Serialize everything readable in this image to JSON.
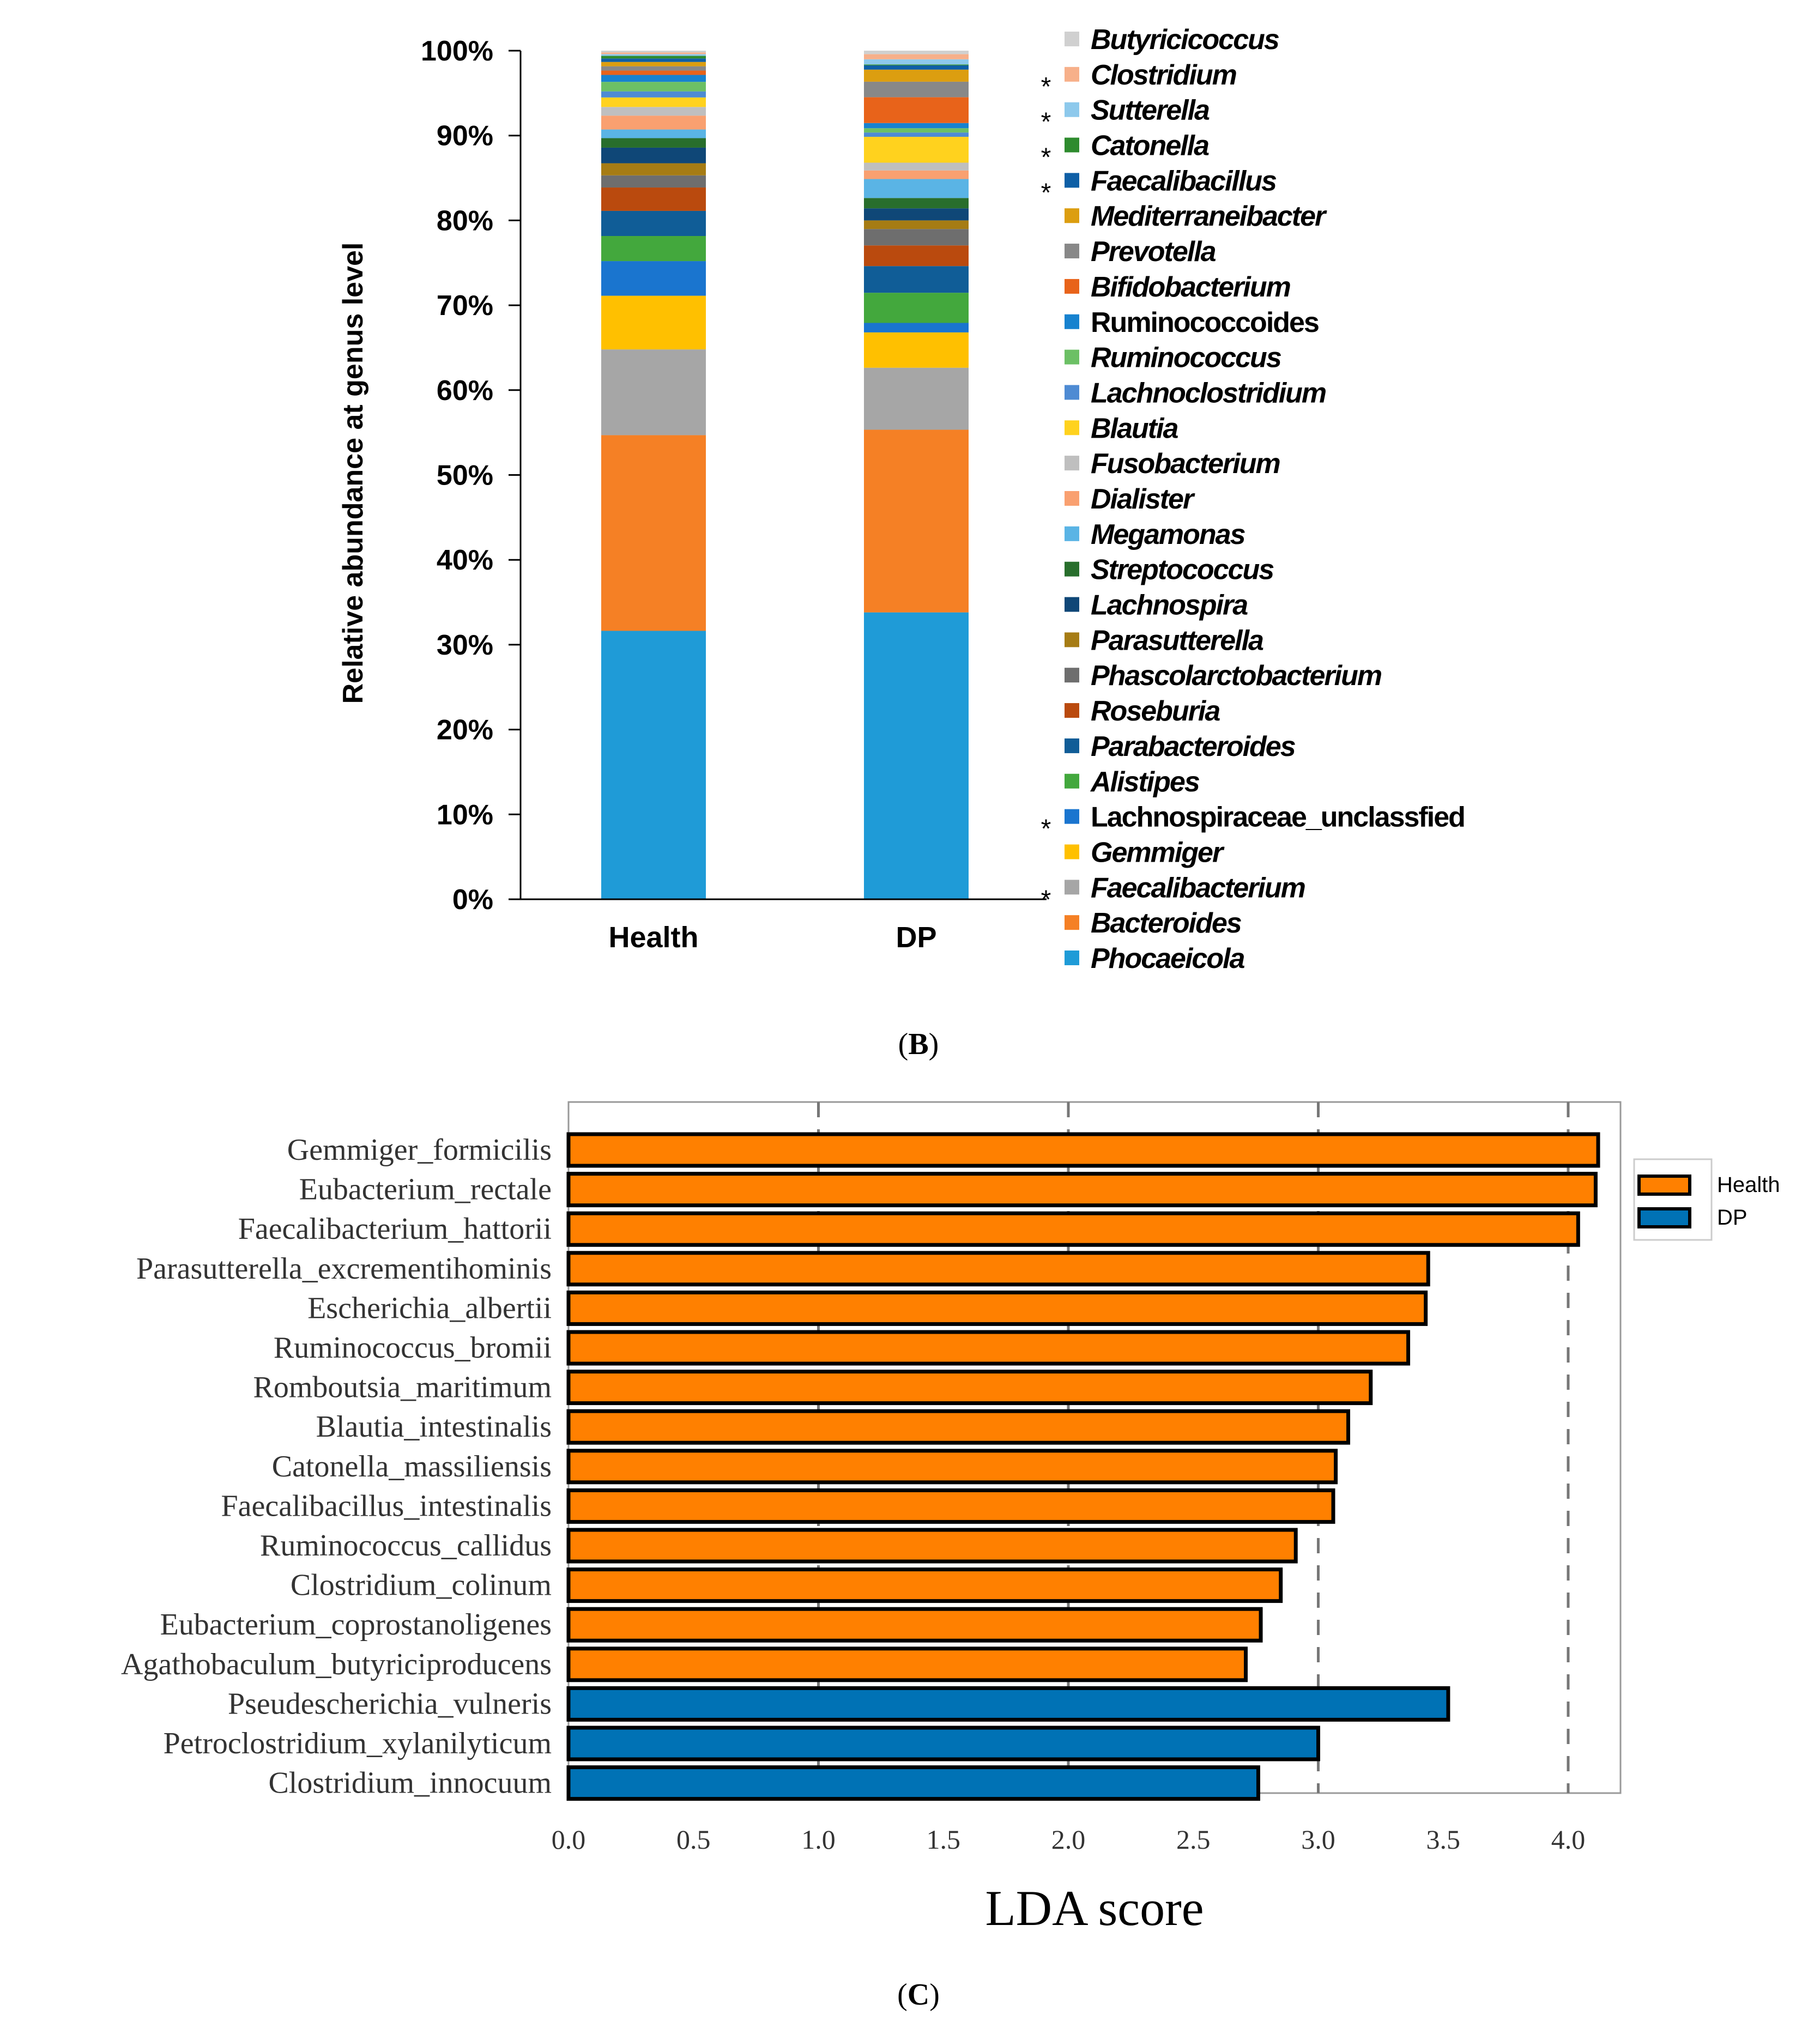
{
  "chart_data": [
    {
      "type": "bar",
      "stacked": true,
      "panel_label": "B",
      "categories": [
        "Health",
        "DP"
      ],
      "ylabel": "Relative abundance at genus level",
      "ylim": [
        0,
        100
      ],
      "y_ticks": [
        "0%",
        "10%",
        "20%",
        "30%",
        "40%",
        "50%",
        "60%",
        "70%",
        "80%",
        "90%",
        "100%"
      ],
      "series": [
        {
          "name": "Phocaeicola",
          "color": "#1F9BD7",
          "italic": true,
          "star": false,
          "values": [
            31.0,
            33.3
          ]
        },
        {
          "name": "Bacteroides",
          "color": "#F58025",
          "italic": true,
          "star": false,
          "values": [
            22.6,
            21.2
          ]
        },
        {
          "name": "Faecalibacterium",
          "color": "#A6A6A6",
          "italic": true,
          "star": true,
          "values": [
            9.9,
            7.2
          ]
        },
        {
          "name": "Gemmiger",
          "color": "#FFC000",
          "italic": true,
          "star": false,
          "values": [
            6.2,
            4.1
          ]
        },
        {
          "name": "Lachnospiraceae_unclassfied",
          "color": "#1A75CF",
          "italic": false,
          "star": true,
          "values": [
            4.0,
            1.1
          ]
        },
        {
          "name": "Alistipes",
          "color": "#43A83D",
          "italic": true,
          "star": false,
          "values": [
            2.9,
            3.5
          ]
        },
        {
          "name": "Parabacteroides",
          "color": "#105D97",
          "italic": true,
          "star": false,
          "values": [
            2.9,
            3.1
          ]
        },
        {
          "name": "Roseburia",
          "color": "#BA4A0E",
          "italic": true,
          "star": false,
          "values": [
            2.7,
            2.4
          ]
        },
        {
          "name": "Phascolarctobacterium",
          "color": "#6E6E6E",
          "italic": true,
          "star": false,
          "values": [
            1.4,
            1.9
          ]
        },
        {
          "name": "Parasutterella",
          "color": "#A67C14",
          "italic": true,
          "star": false,
          "values": [
            1.4,
            1.0
          ]
        },
        {
          "name": "Lachnospira",
          "color": "#0F4777",
          "italic": true,
          "star": false,
          "values": [
            1.8,
            1.4
          ]
        },
        {
          "name": "Streptococcus",
          "color": "#286E2C",
          "italic": true,
          "star": false,
          "values": [
            1.1,
            1.2
          ]
        },
        {
          "name": "Megamonas",
          "color": "#5AB4E5",
          "italic": true,
          "star": false,
          "values": [
            1.0,
            2.2
          ]
        },
        {
          "name": "Dialister",
          "color": "#F9A070",
          "italic": true,
          "star": false,
          "values": [
            1.6,
            1.0
          ]
        },
        {
          "name": "Fusobacterium",
          "color": "#BFBFBF",
          "italic": true,
          "star": false,
          "values": [
            1.0,
            0.9
          ]
        },
        {
          "name": "Blautia",
          "color": "#FFD21E",
          "italic": true,
          "star": false,
          "values": [
            1.1,
            3.0
          ]
        },
        {
          "name": "Lachnoclostridium",
          "color": "#4E8BD3",
          "italic": true,
          "star": false,
          "values": [
            0.7,
            0.5
          ]
        },
        {
          "name": "Ruminococcus",
          "color": "#6CC065",
          "italic": true,
          "star": false,
          "values": [
            1.1,
            0.5
          ]
        },
        {
          "name": "Ruminococcoides",
          "color": "#1782CF",
          "italic": false,
          "star": false,
          "values": [
            0.8,
            0.6
          ]
        },
        {
          "name": "Bifidobacterium",
          "color": "#E8631A",
          "italic": true,
          "star": false,
          "values": [
            0.5,
            3.0
          ]
        },
        {
          "name": "Prevotella",
          "color": "#888888",
          "italic": true,
          "star": false,
          "values": [
            0.5,
            1.8
          ]
        },
        {
          "name": "Mediterraneibacter",
          "color": "#DC9E10",
          "italic": true,
          "star": false,
          "values": [
            0.5,
            1.4
          ]
        },
        {
          "name": "Faecalibacillus",
          "color": "#0E5FA6",
          "italic": true,
          "star": true,
          "values": [
            0.4,
            0.5
          ]
        },
        {
          "name": "Catonella",
          "color": "#2E8B2E",
          "italic": true,
          "star": true,
          "values": [
            0.3,
            0.1
          ]
        },
        {
          "name": "Sutterella",
          "color": "#8DC9EC",
          "italic": true,
          "star": true,
          "values": [
            0.2,
            0.6
          ]
        },
        {
          "name": "Clostridium",
          "color": "#F7B08A",
          "italic": true,
          "star": true,
          "values": [
            0.2,
            0.6
          ]
        },
        {
          "name": "Butyricicoccus",
          "color": "#D0D0D0",
          "italic": true,
          "star": false,
          "values": [
            0.2,
            0.4
          ]
        }
      ]
    },
    {
      "type": "bar",
      "orientation": "horizontal",
      "panel_label": "C",
      "xlabel": "LDA score",
      "xlim": [
        0,
        4.2
      ],
      "x_ticks": [
        "0.0",
        "0.5",
        "1.0",
        "1.5",
        "2.0",
        "2.5",
        "3.0",
        "3.5",
        "4.0"
      ],
      "groups": [
        {
          "name": "Health",
          "color": "#FF8000"
        },
        {
          "name": "DP",
          "color": "#0072B5"
        }
      ],
      "categories": [
        "Gemmiger_formicilis",
        "Eubacterium_rectale",
        "Faecalibacterium_hattorii",
        "Parasutterella_excrementihominis",
        "Escherichia_albertii",
        "Ruminococcus_bromii",
        "Romboutsia_maritimum",
        "Blautia_intestinalis",
        "Catonella_massiliensis",
        "Faecalibacillus_intestinalis",
        "Ruminococcus_callidus",
        "Clostridium_colinum",
        "Eubacterium_coprostanoligenes",
        "Agathobaculum_butyriciproducens",
        "Pseudescherichia_vulneris",
        "Petroclostridium_xylanilyticum",
        "Clostridium_innocuum"
      ],
      "values": [
        4.12,
        4.11,
        4.04,
        3.44,
        3.43,
        3.36,
        3.21,
        3.12,
        3.07,
        3.06,
        2.91,
        2.85,
        2.77,
        2.71,
        3.52,
        3.0,
        2.76
      ],
      "group_of": [
        "Health",
        "Health",
        "Health",
        "Health",
        "Health",
        "Health",
        "Health",
        "Health",
        "Health",
        "Health",
        "Health",
        "Health",
        "Health",
        "Health",
        "DP",
        "DP",
        "DP"
      ]
    }
  ]
}
